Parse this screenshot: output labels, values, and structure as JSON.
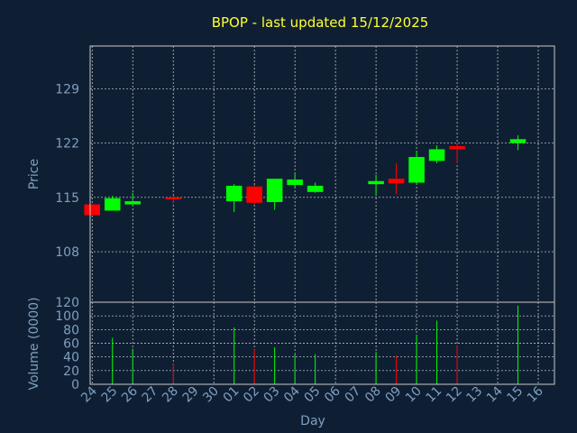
{
  "chart_data": {
    "title": "BPOP - last updated 15/12/2025",
    "price_panel": {
      "type": "candlestick",
      "ylabel": "Price",
      "ylim": [
        101.5,
        134.5
      ],
      "yticks": [
        108,
        115,
        122,
        129
      ],
      "grid": true
    },
    "volume_panel": {
      "type": "bar",
      "ylabel": "Volume (0000)",
      "ylim": [
        0,
        120
      ],
      "yticks": [
        0,
        20,
        40,
        60,
        80,
        100,
        120
      ],
      "grid": true
    },
    "xlabel": "Day",
    "x_ticks": [
      "24",
      "25",
      "26",
      "27",
      "28",
      "29",
      "30",
      "01",
      "02",
      "03",
      "04",
      "05",
      "06",
      "07",
      "08",
      "09",
      "10",
      "11",
      "12",
      "13",
      "14",
      "15",
      "16"
    ],
    "colors": {
      "up": "#00ff00",
      "down": "#ff0000",
      "background": "#0f1f33",
      "title": "#ffff33",
      "axis_text": "#7f9fbf"
    },
    "candles": [
      {
        "day": "24",
        "open": 114.1,
        "high": 114.1,
        "low": 112.6,
        "close": 112.7
      },
      {
        "day": "25",
        "open": 113.3,
        "high": 115.2,
        "low": 113.3,
        "close": 114.9
      },
      {
        "day": "26",
        "open": 114.1,
        "high": 115.6,
        "low": 114.1,
        "close": 114.5
      },
      {
        "day": "28",
        "open": 115.0,
        "high": 115.2,
        "low": 114.2,
        "close": 114.8
      },
      {
        "day": "01",
        "open": 114.5,
        "high": 116.7,
        "low": 113.1,
        "close": 116.5
      },
      {
        "day": "02",
        "open": 116.4,
        "high": 116.6,
        "low": 114.1,
        "close": 114.3
      },
      {
        "day": "03",
        "open": 114.4,
        "high": 117.4,
        "low": 113.4,
        "close": 117.4
      },
      {
        "day": "04",
        "open": 116.6,
        "high": 118.1,
        "low": 116.2,
        "close": 117.3
      },
      {
        "day": "05",
        "open": 115.7,
        "high": 116.9,
        "low": 115.6,
        "close": 116.5
      },
      {
        "day": "08",
        "open": 116.7,
        "high": 117.9,
        "low": 115.3,
        "close": 117.1
      },
      {
        "day": "09",
        "open": 117.4,
        "high": 119.4,
        "low": 115.4,
        "close": 116.8
      },
      {
        "day": "10",
        "open": 116.9,
        "high": 121.0,
        "low": 116.7,
        "close": 120.2
      },
      {
        "day": "11",
        "open": 119.7,
        "high": 121.7,
        "low": 119.4,
        "close": 121.2
      },
      {
        "day": "12",
        "open": 121.6,
        "high": 121.9,
        "low": 119.4,
        "close": 121.2
      },
      {
        "day": "15",
        "open": 122.0,
        "high": 123.0,
        "low": 121.1,
        "close": 122.5
      }
    ],
    "volume": [
      {
        "day": "25",
        "value": 68,
        "color": "up"
      },
      {
        "day": "26",
        "value": 52,
        "color": "up"
      },
      {
        "day": "28",
        "value": 31,
        "color": "down"
      },
      {
        "day": "01",
        "value": 83,
        "color": "up"
      },
      {
        "day": "02",
        "value": 51,
        "color": "down"
      },
      {
        "day": "03",
        "value": 54,
        "color": "up"
      },
      {
        "day": "04",
        "value": 44,
        "color": "up"
      },
      {
        "day": "05",
        "value": 44,
        "color": "up"
      },
      {
        "day": "08",
        "value": 47,
        "color": "up"
      },
      {
        "day": "09",
        "value": 42,
        "color": "down"
      },
      {
        "day": "10",
        "value": 72,
        "color": "up"
      },
      {
        "day": "11",
        "value": 93,
        "color": "up"
      },
      {
        "day": "12",
        "value": 57,
        "color": "down"
      },
      {
        "day": "15",
        "value": 115,
        "color": "up"
      }
    ]
  }
}
